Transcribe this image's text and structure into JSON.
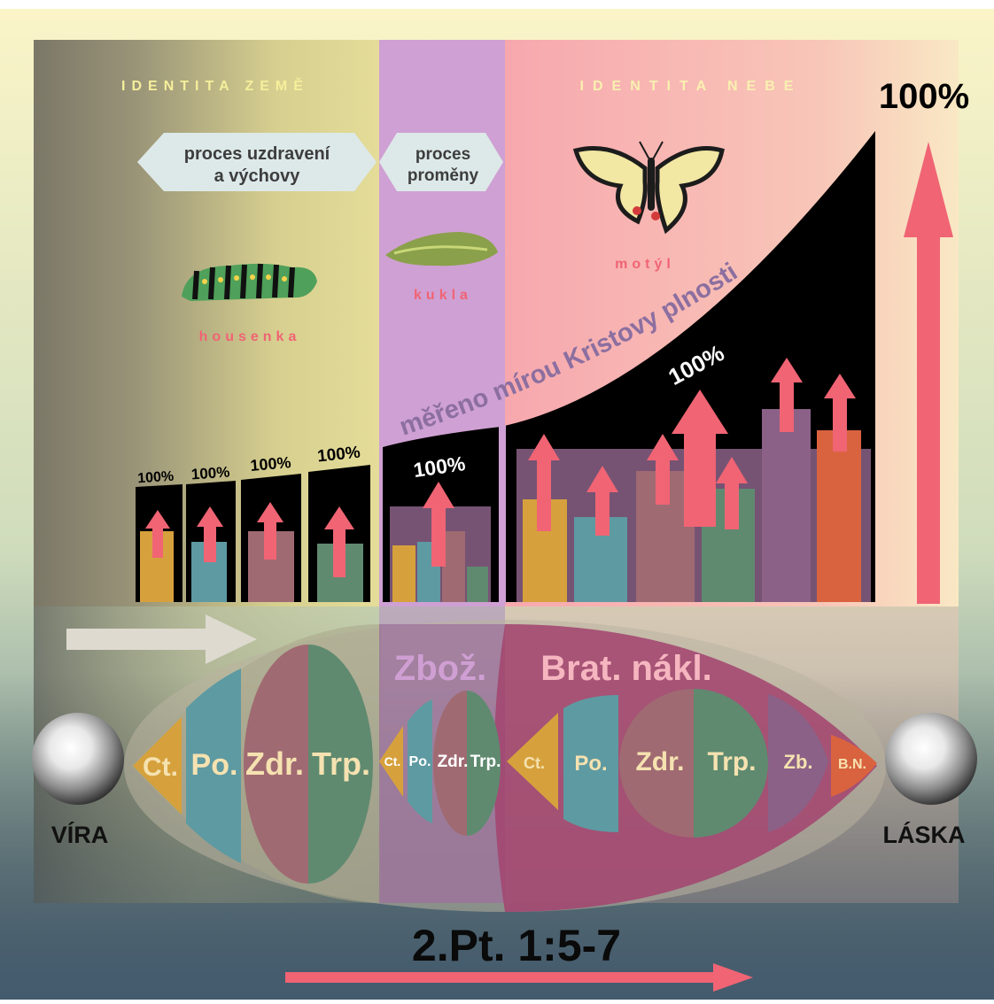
{
  "zones": {
    "earth_title": "IDENTITA ZEMĚ",
    "heaven_title": "IDENTITA NEBE"
  },
  "process": {
    "healing_line1": "proces uzdravení",
    "healing_line2": "a výchovy",
    "change_line1": "proces",
    "change_line2": "proměny"
  },
  "stages": {
    "caterpillar": "housenka",
    "pupa": "kukla",
    "butterfly": "motýl"
  },
  "measure": {
    "curve_label": "měřeno mírou Kristovy plnosti",
    "top_percent": "100%"
  },
  "bars": {
    "small_labels": [
      "100%",
      "100%",
      "100%",
      "100%"
    ],
    "mid_label": "100%",
    "large_label": "100%"
  },
  "virtues": {
    "group1": [
      "Ct.",
      "Po.",
      "Zdr.",
      "Trp."
    ],
    "group2": [
      "Ct.",
      "Po.",
      "Zdr.",
      "Trp."
    ],
    "group3": [
      "Ct.",
      "Po.",
      "Zdr.",
      "Trp.",
      "Zb.",
      "B.N."
    ],
    "zboz": "Zbož.",
    "brat": "Brat. nákl."
  },
  "ends": {
    "left": "VÍRA",
    "right": "LÁSKA"
  },
  "reference": "2.Pt. 1:5-7",
  "colors": {
    "gold": "#d6a13c",
    "teal": "#5e9aa2",
    "mauve": "#a06a72",
    "green": "#5f8a70",
    "purple": "#8b6187",
    "orange": "#d9633f",
    "pink_arrow": "#f06474",
    "zone_pupa": "#cc9bd0",
    "zone_heaven": "#f8b8b4",
    "title_yellow": "#f5ef9c",
    "label_pink": "#f06474"
  },
  "icons": [
    "caterpillar-icon",
    "pupa-icon",
    "butterfly-icon",
    "faith-sphere-icon",
    "love-sphere-icon",
    "progress-arrow-icon"
  ]
}
